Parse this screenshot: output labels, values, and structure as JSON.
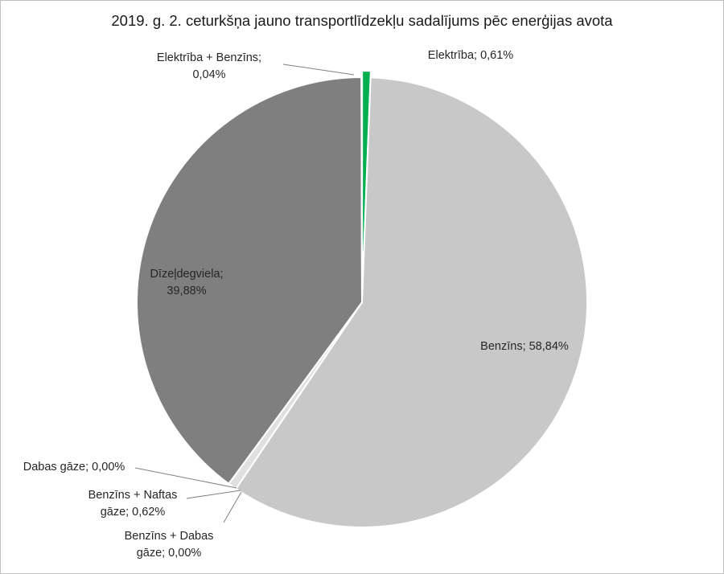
{
  "chart_data": {
    "type": "pie",
    "title": "2019. g. 2. ceturkšņa jauno transportlīdzekļu sadalījums pēc enerģijas avota",
    "slices": [
      {
        "label": "Elektrība",
        "value": 0.61,
        "color": "#00b050",
        "label_text": [
          "Elektrība; 0,61%"
        ]
      },
      {
        "label": "Benzīns",
        "value": 58.84,
        "color": "#c8c8c8",
        "label_text": [
          "Benzīns; 58,84%"
        ]
      },
      {
        "label": "Benzīns + Dabas gāze",
        "value": 0.0,
        "color": "#d9d9d9",
        "label_text": [
          "Benzīns + Dabas",
          "gāze; 0,00%"
        ]
      },
      {
        "label": "Benzīns + Naftas gāze",
        "value": 0.62,
        "color": "#e0e0e0",
        "label_text": [
          "Benzīns + Naftas",
          "gāze; 0,62%"
        ]
      },
      {
        "label": "Dabas gāze",
        "value": 0.0,
        "color": "#a6a6a6",
        "label_text": [
          "Dabas gāze; 0,00%"
        ]
      },
      {
        "label": "Dīzeļdegviela",
        "value": 39.88,
        "color": "#7f7f7f",
        "label_text": [
          "Dīzeļdegviela;",
          "39,88%"
        ]
      },
      {
        "label": "Elektrība + Benzīns",
        "value": 0.04,
        "color": "#3a3a3a",
        "label_text": [
          "Elektrība + Benzīns;",
          "0,04%"
        ]
      }
    ]
  }
}
